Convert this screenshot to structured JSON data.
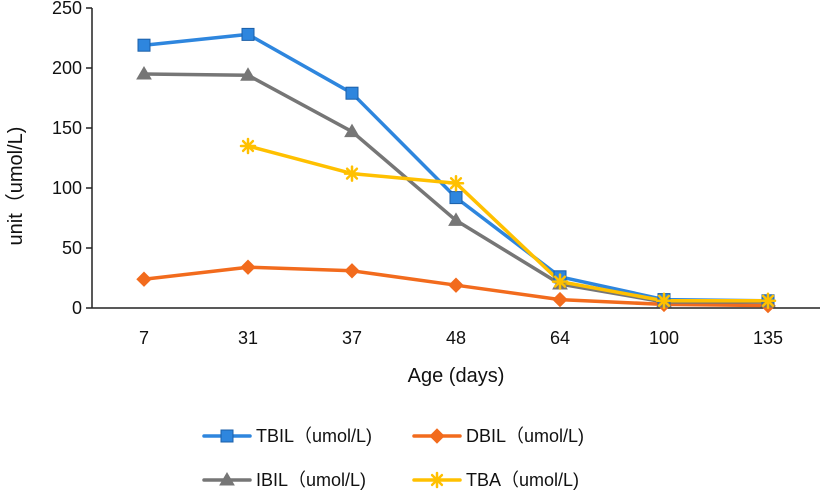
{
  "chart_data": {
    "type": "line",
    "title": "",
    "xlabel": "Age (days)",
    "ylabel": "unit（umol/L)",
    "categories": [
      "7",
      "31",
      "37",
      "48",
      "64",
      "100",
      "135"
    ],
    "ylim": [
      0,
      250
    ],
    "yticks": [
      0,
      50,
      100,
      150,
      200,
      250
    ],
    "grid": false,
    "legend_position": "bottom",
    "series": [
      {
        "name": "TBIL（umol/L)",
        "color": "#2E86DE",
        "marker": "square",
        "values": [
          219,
          228,
          179,
          92,
          26,
          7,
          6
        ]
      },
      {
        "name": "DBIL（umol/L)",
        "color": "#F26B1D",
        "marker": "diamond",
        "values": [
          24,
          34,
          31,
          19,
          7,
          3,
          2
        ]
      },
      {
        "name": "IBIL（umol/L)",
        "color": "#767676",
        "marker": "triangle",
        "values": [
          195,
          194,
          147,
          73,
          20,
          5,
          5
        ]
      },
      {
        "name": "TBA（umol/L)",
        "color": "#FFC000",
        "marker": "asterisk",
        "values": [
          null,
          135,
          112,
          104,
          22,
          6,
          6
        ]
      }
    ]
  }
}
